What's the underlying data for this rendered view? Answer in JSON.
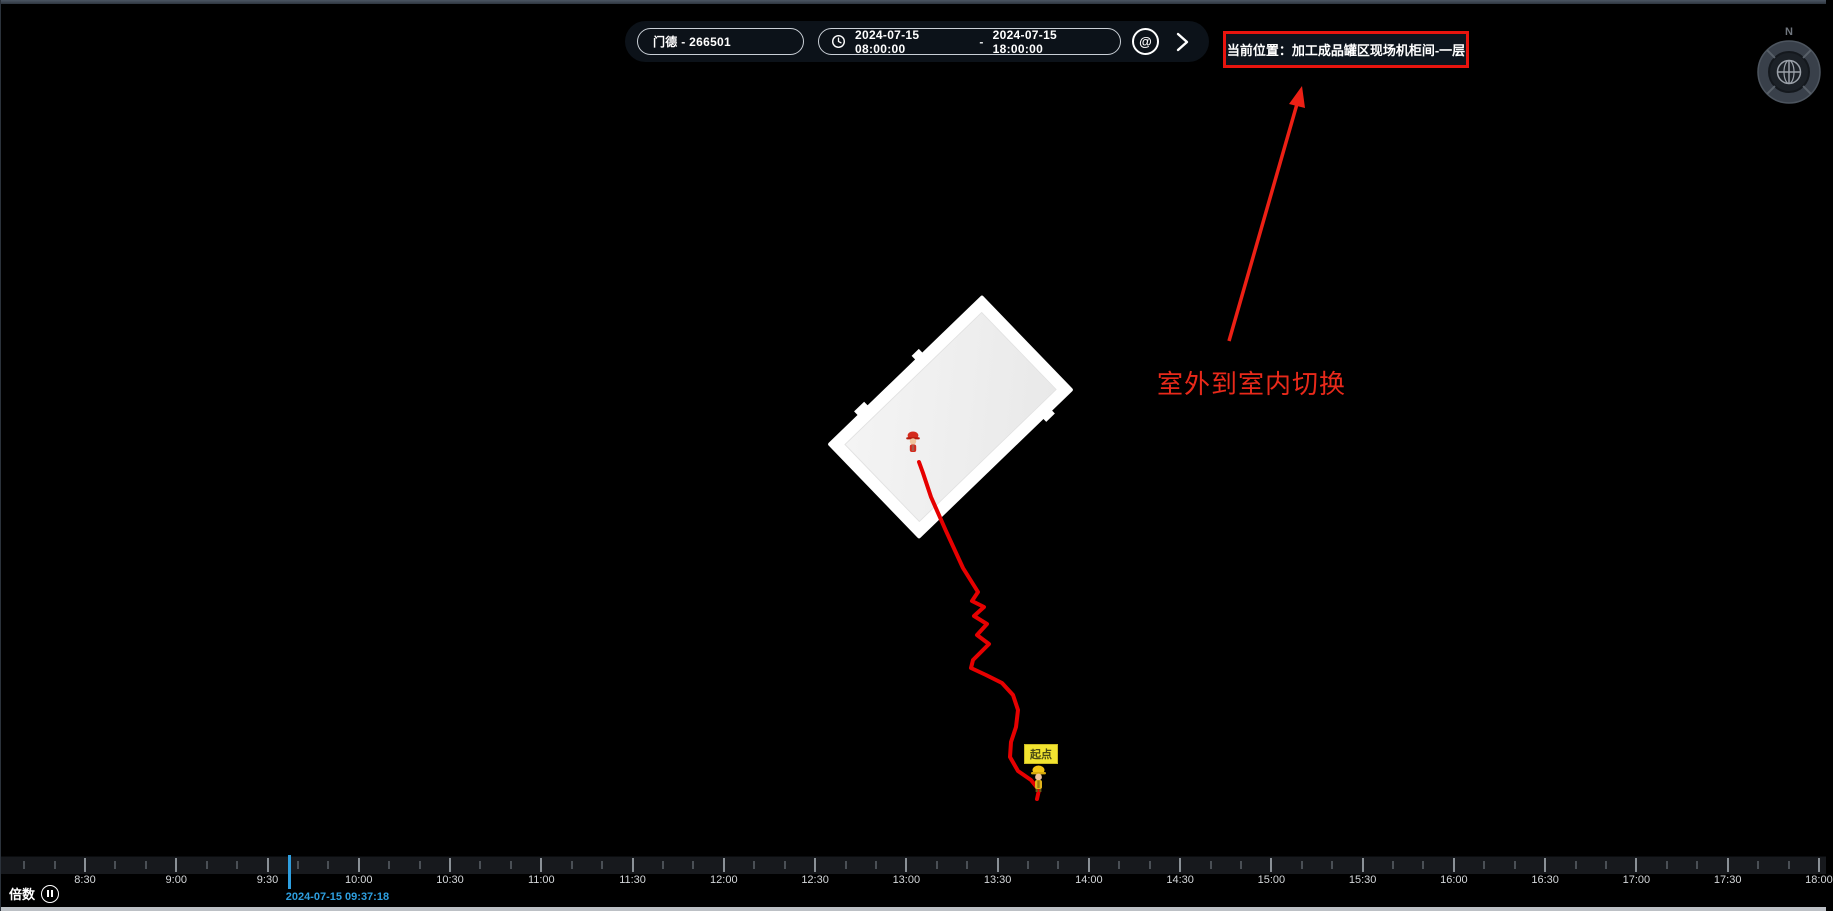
{
  "header": {
    "target_select": {
      "value": "门德 - 266501"
    },
    "time_range": {
      "start": "2024-07-15 08:00:00",
      "separator": "-",
      "end": "2024-07-15 18:00:00"
    },
    "locate_glyph": "@",
    "current_location": "当前位置：加工成品罐区现场机柜间-一层"
  },
  "annotation": {
    "label": "室外到室内切换"
  },
  "compass": {
    "north": "N"
  },
  "map": {
    "start_point_label": "起点"
  },
  "timeline": {
    "tick_labels": [
      "8:30",
      "9:00",
      "9:30",
      "10:00",
      "10:30",
      "11:00",
      "11:30",
      "12:00",
      "12:30",
      "13:00",
      "13:30",
      "14:00",
      "14:30",
      "15:00",
      "15:30",
      "16:00",
      "16:30",
      "17:00",
      "17:30",
      "18:00"
    ],
    "cursor_timestamp": "2024-07-15 09:37:18",
    "speed_label": "倍数"
  },
  "colors": {
    "annotation_red": "#e8291a",
    "track_red": "#e60000",
    "cursor_blue": "#2e9fe0",
    "start_yellow": "#f2e430",
    "strip_bg": "#0c1219"
  }
}
